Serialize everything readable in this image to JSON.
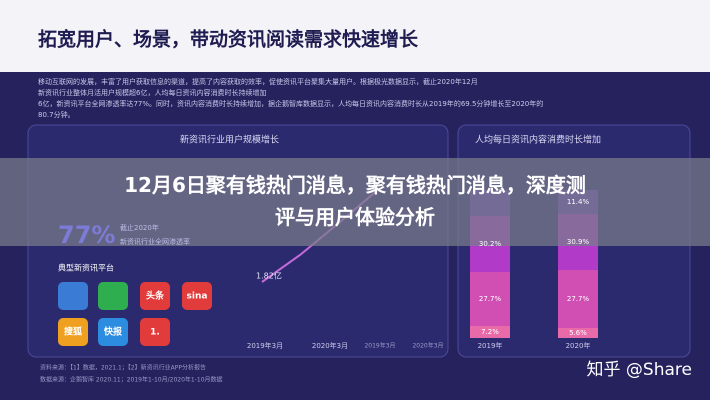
{
  "slide": {
    "title": "拓宽用户、场景，带动资讯阅读需求快速增长",
    "paragraph": [
      "移动互联网的发展，丰富了用户获取信息的渠道，提高了内容获取的效率，促使资讯平台聚集大量用户。根据极光数据显示，截止2020年12月",
      "新资讯行业整体月活用户规模超6亿，人均每日资讯内容消费时长持续增加",
      "6亿，新资讯平台全网渗透率达77%。同时，资讯内容消费时长持续增加，据企鹅智库数据显示，人均每日资讯内容消费时长从2019年的69.5分钟增长至2020年的",
      "80.7分钟。"
    ],
    "left_panel": {
      "title": "新资讯行业用户规模增长",
      "big_value": "77%",
      "note_1": "截止2020年",
      "note_2": "新资讯行业全网渗透率",
      "platforms_title": "典型新资讯平台",
      "icons": [
        "头条",
        "sina",
        "搜狐",
        "快报",
        "1."
      ],
      "point_label": "1.82亿",
      "x_labels": [
        "2019年3月",
        "2020年3月",
        "2019年3月",
        "2020年3月"
      ]
    },
    "right_panel": {
      "title": "人均每日资讯内容消费时长增加",
      "bars": [
        {
          "label": "2019年",
          "segments": [
            "7.2%",
            "27.7%",
            "30.2%"
          ]
        },
        {
          "label": "2020年",
          "segments": [
            "5.6%",
            "27.7%",
            "30.9%",
            "11.4%"
          ]
        }
      ]
    },
    "footer": [
      "资料来源：【1】数据，2021.1；【2】新资讯行业APP分析报告",
      "数据来源：企鹅智库 2020.11；2019年1-10月/2020年1-10月数据"
    ]
  },
  "overlay": {
    "title": "12月6日聚有钱热门消息，聚有钱热门消息，深度测评与用户体验分析"
  },
  "watermark": "知乎 @Share"
}
